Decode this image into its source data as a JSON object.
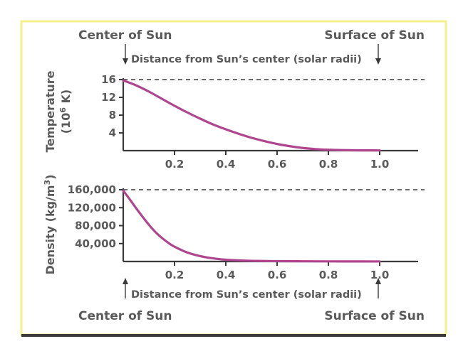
{
  "labels": {
    "center_top": "Center of Sun",
    "surface_top": "Surface of Sun",
    "distance_top": "Distance from Sun’s center (solar radii)",
    "distance_bottom": "Distance from Sun’s center (solar radii)",
    "center_bottom": "Center of Sun",
    "surface_bottom": "Surface of Sun"
  },
  "colors": {
    "frame": "#f4f08a",
    "curve": "#b0458f",
    "axis": "#3a3a3a",
    "text": "#5a5a5a",
    "bottom_rule": "#3a3a3a"
  },
  "chart_data": [
    {
      "type": "line",
      "ylabel_main": "Temperature",
      "ylabel_unit_prefix": "(10",
      "ylabel_unit_exp": "6",
      "ylabel_unit_suffix": " K)",
      "xlim": [
        0,
        1.15
      ],
      "ylim": [
        0,
        16
      ],
      "x_ticks": [
        "0.2",
        "0.4",
        "0.6",
        "0.8",
        "1.0"
      ],
      "y_ticks": [
        "4",
        "8",
        "12",
        "16"
      ],
      "reference_line": 16,
      "series": [
        {
          "x": [
            0.0,
            0.05,
            0.1,
            0.15,
            0.2,
            0.25,
            0.3,
            0.35,
            0.4,
            0.45,
            0.5,
            0.55,
            0.6,
            0.65,
            0.7,
            0.75,
            0.8,
            0.85,
            0.9,
            0.95,
            1.0
          ],
          "values": [
            15.8,
            14.7,
            13.3,
            11.7,
            10.1,
            8.6,
            7.2,
            5.9,
            4.8,
            3.8,
            2.9,
            2.15,
            1.5,
            1.0,
            0.6,
            0.35,
            0.2,
            0.12,
            0.08,
            0.06,
            0.05
          ]
        }
      ]
    },
    {
      "type": "line",
      "ylabel_main": "Density (kg/m",
      "ylabel_unit_exp": "3",
      "ylabel_unit_suffix": ")",
      "xlim": [
        0,
        1.15
      ],
      "ylim": [
        0,
        160000
      ],
      "x_ticks": [
        "0.2",
        "0.4",
        "0.6",
        "0.8",
        "1.0"
      ],
      "y_ticks": [
        "40,000",
        "80,000",
        "120,000",
        "160,000"
      ],
      "reference_line": 160000,
      "series": [
        {
          "x": [
            0.0,
            0.025,
            0.05,
            0.075,
            0.1,
            0.125,
            0.15,
            0.175,
            0.2,
            0.25,
            0.3,
            0.35,
            0.4,
            0.45,
            0.5,
            0.6,
            0.7,
            0.8,
            0.9,
            1.0
          ],
          "values": [
            158000,
            139000,
            119000,
            100000,
            82000,
            66000,
            53000,
            42000,
            33000,
            20000,
            12000,
            7000,
            4000,
            2500,
            1500,
            800,
            500,
            300,
            200,
            100
          ]
        }
      ]
    }
  ]
}
